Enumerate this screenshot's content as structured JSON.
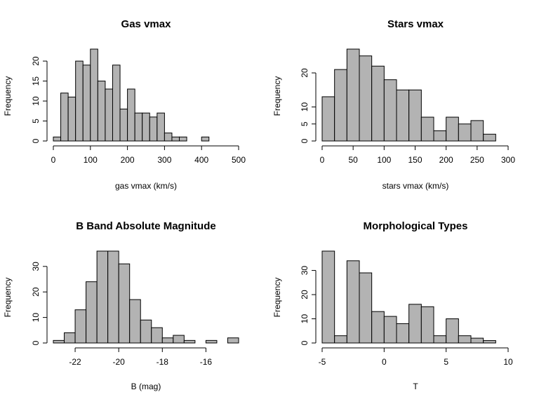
{
  "chart_data": [
    {
      "type": "bar",
      "title": "Gas vmax",
      "xlabel": "gas vmax (km/s)",
      "ylabel": "Frequency",
      "bin_width": 20,
      "bins_start": 0,
      "values": [
        1,
        12,
        11,
        20,
        19,
        23,
        15,
        13,
        19,
        8,
        13,
        7,
        7,
        6,
        7,
        2,
        1,
        1,
        0,
        0,
        1
      ],
      "xlim": [
        0,
        500
      ],
      "ylim": [
        0,
        23
      ],
      "xticks": [
        0,
        100,
        200,
        300,
        400,
        500
      ],
      "yticks": [
        0,
        5,
        10,
        15,
        20
      ],
      "xtick_labels": [
        "0",
        "100",
        "200",
        "300",
        "400",
        "500"
      ],
      "ytick_labels": [
        "0",
        "5",
        "10",
        "15",
        "20"
      ]
    },
    {
      "type": "bar",
      "title": "Stars vmax",
      "xlabel": "stars vmax (km/s)",
      "ylabel": "Frequency",
      "bin_width": 20,
      "bins_start": 0,
      "values": [
        13,
        21,
        27,
        25,
        22,
        18,
        15,
        15,
        7,
        3,
        7,
        5,
        6,
        2
      ],
      "xlim": [
        0,
        300
      ],
      "ylim": [
        0,
        27
      ],
      "xticks": [
        0,
        50,
        100,
        150,
        200,
        250,
        300
      ],
      "yticks": [
        0,
        5,
        10,
        20
      ],
      "xtick_labels": [
        "0",
        "50",
        "100",
        "150",
        "200",
        "250",
        "300"
      ],
      "ytick_labels": [
        "0",
        "5",
        "10",
        "20"
      ]
    },
    {
      "type": "bar",
      "title": "B Band Absolute Magnitude",
      "xlabel": "B (mag)",
      "ylabel": "Frequency",
      "bin_width": 0.5,
      "bins_start": -23,
      "values": [
        1,
        4,
        13,
        24,
        36,
        36,
        31,
        17,
        9,
        6,
        2,
        3,
        1,
        0,
        1,
        0,
        2
      ],
      "xlim": [
        -23,
        -14.5
      ],
      "ylim": [
        0,
        36
      ],
      "xticks": [
        -22,
        -20,
        -18,
        -16
      ],
      "yticks": [
        0,
        10,
        20,
        30
      ],
      "xtick_labels": [
        "-22",
        "-20",
        "-18",
        "-16"
      ],
      "ytick_labels": [
        "0",
        "10",
        "20",
        "30"
      ]
    },
    {
      "type": "bar",
      "title": "Morphological Types",
      "xlabel": "T",
      "ylabel": "Frequency",
      "bin_width": 1,
      "bins_start": -5,
      "values": [
        38,
        3,
        34,
        29,
        13,
        11,
        8,
        16,
        15,
        3,
        10,
        3,
        2,
        1
      ],
      "xlim": [
        -5,
        10
      ],
      "ylim": [
        0,
        38
      ],
      "xticks": [
        -5,
        0,
        5,
        10
      ],
      "yticks": [
        0,
        10,
        20,
        30
      ],
      "xtick_labels": [
        "-5",
        "0",
        "5",
        "10"
      ],
      "ytick_labels": [
        "0",
        "10",
        "20",
        "30"
      ]
    }
  ]
}
